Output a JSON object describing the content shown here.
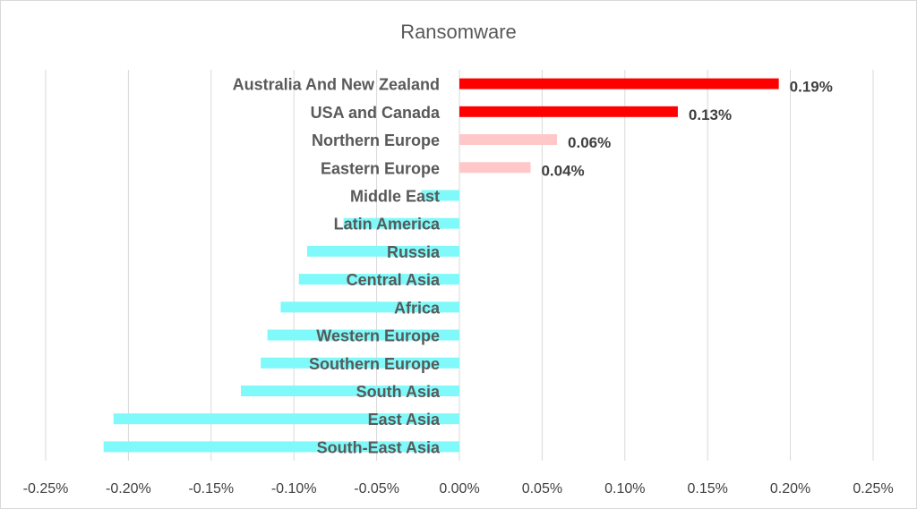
{
  "chart_data": {
    "type": "bar",
    "orientation": "horizontal",
    "title": "Ransomware",
    "xlabel": "",
    "ylabel": "",
    "xlim": [
      -0.25,
      0.25
    ],
    "x_ticks": [
      "-0.25%",
      "-0.20%",
      "-0.15%",
      "-0.10%",
      "-0.05%",
      "0.00%",
      "0.05%",
      "0.10%",
      "0.15%",
      "0.20%",
      "0.25%"
    ],
    "grid": "vertical",
    "legend": "none",
    "categories": [
      "Australia And New Zealand",
      "USA and Canada",
      "Northern Europe",
      "Eastern Europe",
      "Middle East",
      "Latin America",
      "Russia",
      "Central Asia",
      "Africa",
      "Western Europe",
      "Southern Europe",
      "South Asia",
      "East Asia",
      "South-East Asia"
    ],
    "values": [
      0.193,
      0.132,
      0.059,
      0.043,
      -0.023,
      -0.07,
      -0.092,
      -0.097,
      -0.108,
      -0.116,
      -0.12,
      -0.132,
      -0.209,
      -0.215
    ],
    "data_labels": [
      "0.19%",
      "0.13%",
      "0.06%",
      "0.04%",
      "",
      "",
      "",
      "",
      "",
      "",
      "",
      "",
      "",
      ""
    ],
    "colors": [
      "#ff0000",
      "#ff0000",
      "#ffc7c7",
      "#ffc7c7",
      "#7ff9f9",
      "#7ff9f9",
      "#7ff9f9",
      "#7ff9f9",
      "#7ff9f9",
      "#7ff9f9",
      "#7ff9f9",
      "#7ff9f9",
      "#7ff9f9",
      "#7ff9f9"
    ],
    "gridline_color": "#d9d9d9"
  }
}
